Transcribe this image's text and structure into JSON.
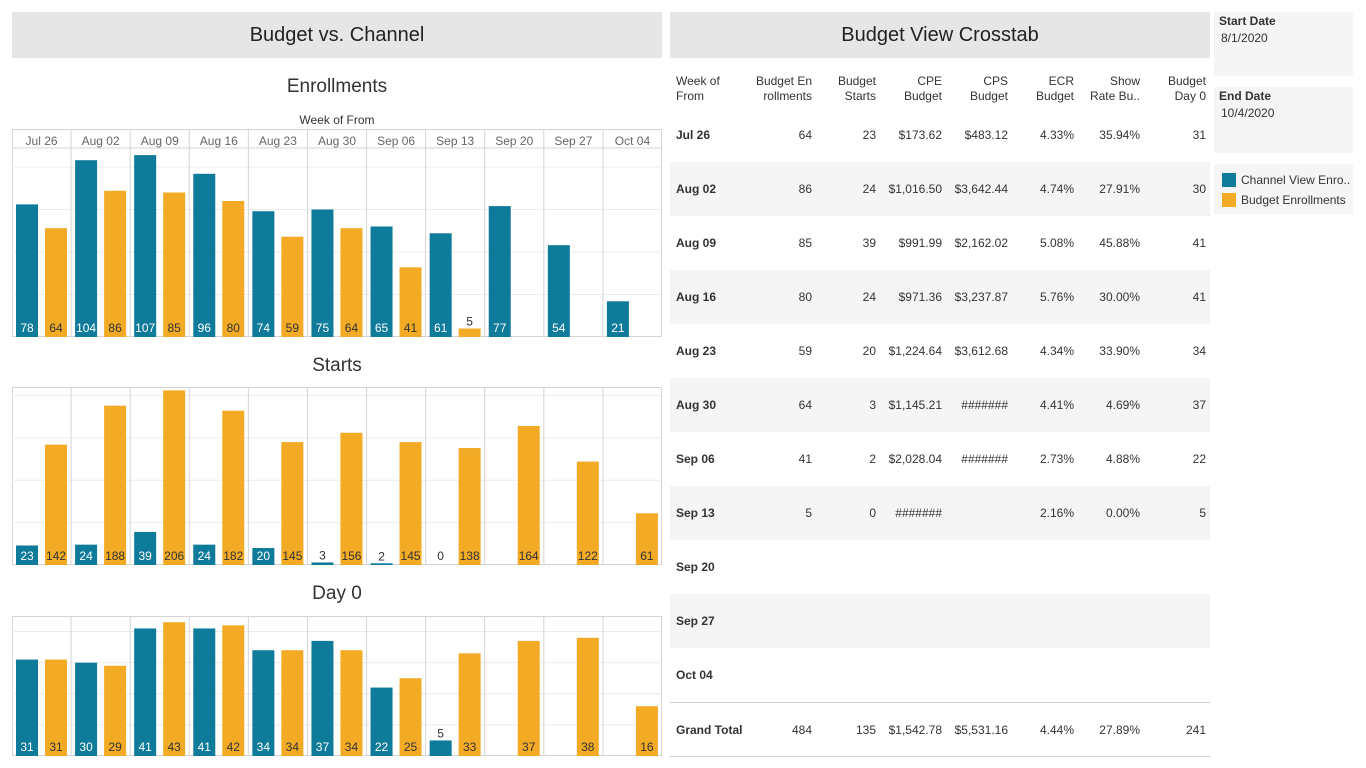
{
  "left_header": "Budget vs. Channel",
  "right_header": "Budget View Crosstab",
  "axis_header": "Week of From",
  "colors": {
    "channel": "#0e7b9a",
    "budget": "#f3aa24"
  },
  "chart_data": [
    {
      "type": "bar",
      "title": "Enrollments",
      "categories": [
        "Jul 26",
        "Aug 02",
        "Aug 09",
        "Aug 16",
        "Aug 23",
        "Aug 30",
        "Sep 06",
        "Sep 13",
        "Sep 20",
        "Sep 27",
        "Oct 04"
      ],
      "series": [
        {
          "name": "Channel View Enro..",
          "values": [
            78,
            104,
            107,
            96,
            74,
            75,
            65,
            61,
            77,
            54,
            21
          ]
        },
        {
          "name": "Budget Enrollments",
          "values": [
            64,
            86,
            85,
            80,
            59,
            64,
            41,
            5,
            null,
            null,
            null
          ]
        }
      ],
      "ylim": [
        0,
        110
      ],
      "grid": true
    },
    {
      "type": "bar",
      "title": "Starts",
      "categories": [
        "Jul 26",
        "Aug 02",
        "Aug 09",
        "Aug 16",
        "Aug 23",
        "Aug 30",
        "Sep 06",
        "Sep 13",
        "Sep 20",
        "Sep 27",
        "Oct 04"
      ],
      "series": [
        {
          "name": "Channel View Enro..",
          "values": [
            23,
            24,
            39,
            24,
            20,
            3,
            2,
            0,
            null,
            null,
            null
          ]
        },
        {
          "name": "Budget Enrollments",
          "values": [
            142,
            188,
            206,
            182,
            145,
            156,
            145,
            138,
            164,
            122,
            61
          ]
        }
      ],
      "ylim": [
        0,
        210
      ],
      "grid": true
    },
    {
      "type": "bar",
      "title": "Day 0",
      "categories": [
        "Jul 26",
        "Aug 02",
        "Aug 09",
        "Aug 16",
        "Aug 23",
        "Aug 30",
        "Sep 06",
        "Sep 13",
        "Sep 20",
        "Sep 27",
        "Oct 04"
      ],
      "series": [
        {
          "name": "Channel View Enro..",
          "values": [
            31,
            30,
            41,
            41,
            34,
            37,
            22,
            5,
            null,
            null,
            null
          ]
        },
        {
          "name": "Budget Enrollments",
          "values": [
            31,
            29,
            43,
            42,
            34,
            34,
            25,
            33,
            37,
            38,
            16
          ]
        }
      ],
      "ylim": [
        0,
        45
      ],
      "grid": true
    }
  ],
  "crosstab": {
    "columns": [
      "Week of\nFrom",
      "Budget En\nrollments",
      "Budget\nStarts",
      "CPE\nBudget",
      "CPS\nBudget",
      "ECR\nBudget",
      "Show\nRate Bu..",
      "Budget\nDay 0"
    ],
    "rows": [
      [
        "Jul 26",
        "64",
        "23",
        "$173.62",
        "$483.12",
        "4.33%",
        "35.94%",
        "31"
      ],
      [
        "Aug 02",
        "86",
        "24",
        "$1,016.50",
        "$3,642.44",
        "4.74%",
        "27.91%",
        "30"
      ],
      [
        "Aug 09",
        "85",
        "39",
        "$991.99",
        "$2,162.02",
        "5.08%",
        "45.88%",
        "41"
      ],
      [
        "Aug 16",
        "80",
        "24",
        "$971.36",
        "$3,237.87",
        "5.76%",
        "30.00%",
        "41"
      ],
      [
        "Aug 23",
        "59",
        "20",
        "$1,224.64",
        "$3,612.68",
        "4.34%",
        "33.90%",
        "34"
      ],
      [
        "Aug 30",
        "64",
        "3",
        "$1,145.21",
        "#######",
        "4.41%",
        "4.69%",
        "37"
      ],
      [
        "Sep 06",
        "41",
        "2",
        "$2,028.04",
        "#######",
        "2.73%",
        "4.88%",
        "22"
      ],
      [
        "Sep 13",
        "5",
        "0",
        "#######",
        "",
        "2.16%",
        "0.00%",
        "5"
      ],
      [
        "Sep 20",
        "",
        "",
        "",
        "",
        "",
        "",
        ""
      ],
      [
        "Sep 27",
        "",
        "",
        "",
        "",
        "",
        "",
        ""
      ],
      [
        "Oct 04",
        "",
        "",
        "",
        "",
        "",
        "",
        ""
      ]
    ],
    "total": [
      "Grand Total",
      "484",
      "135",
      "$1,542.78",
      "$5,531.16",
      "4.44%",
      "27.89%",
      "241"
    ]
  },
  "filters": {
    "start_label": "Start Date",
    "start_value": "8/1/2020",
    "end_label": "End Date",
    "end_value": "10/4/2020"
  },
  "legend": [
    {
      "label": "Channel View Enro..",
      "color": "#0e7b9a"
    },
    {
      "label": "Budget Enrollments",
      "color": "#f3aa24"
    }
  ]
}
